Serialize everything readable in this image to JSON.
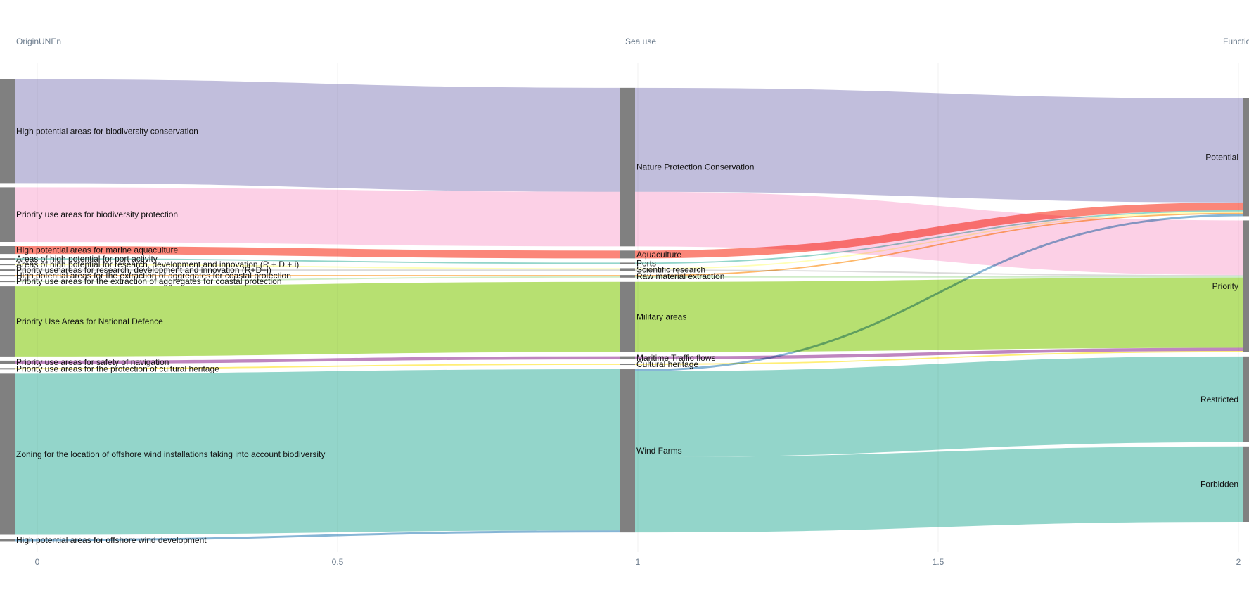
{
  "chart_data": {
    "type": "sankey",
    "columns": [
      "OriginUNEn",
      "Sea use",
      "Function"
    ],
    "x_ticks": [
      "0",
      "0.5",
      "1",
      "1.5",
      "2"
    ],
    "nodes": [
      {
        "id": "hp_bio",
        "label": "High potential areas for biodiversity conservation",
        "column": 0
      },
      {
        "id": "pu_bio",
        "label": "Priority use areas for biodiversity protection",
        "column": 0
      },
      {
        "id": "hp_aqua",
        "label": "High potential areas for marine aquaculture",
        "column": 0
      },
      {
        "id": "hp_port",
        "label": "Areas of high potential for port activity",
        "column": 0
      },
      {
        "id": "hp_rdi",
        "label": "Areas of high potential for research, development and innovation (R + D + i)",
        "column": 0
      },
      {
        "id": "pu_rdi",
        "label": "Priority use areas for research, development and innovation (R+D+i)",
        "column": 0
      },
      {
        "id": "hp_agg",
        "label": "High potential areas for the extraction of aggregates for coastal protection",
        "column": 0
      },
      {
        "id": "pu_agg",
        "label": "Priority use areas for the extraction of aggregates for coastal protection",
        "column": 0
      },
      {
        "id": "pu_def",
        "label": "Priority Use Areas for National Defence",
        "column": 0
      },
      {
        "id": "pu_nav",
        "label": "Priority use areas for safety of navigation",
        "column": 0
      },
      {
        "id": "pu_cult",
        "label": "Priority use areas for the protection of cultural heritage",
        "column": 0
      },
      {
        "id": "z_wind",
        "label": "Zoning for the location of offshore wind installations taking into account biodiversity",
        "column": 0
      },
      {
        "id": "hp_wind",
        "label": "High potential areas for offshore wind development",
        "column": 0
      },
      {
        "id": "npc",
        "label": "Nature Protection Conservation",
        "column": 1
      },
      {
        "id": "aqua",
        "label": "Aquaculture",
        "column": 1
      },
      {
        "id": "ports",
        "label": "Ports",
        "column": 1
      },
      {
        "id": "sci",
        "label": "Scientific research",
        "column": 1
      },
      {
        "id": "raw",
        "label": "Raw material extraction",
        "column": 1
      },
      {
        "id": "mil",
        "label": "Military areas",
        "column": 1
      },
      {
        "id": "mtf",
        "label": "Maritime Traffic flows",
        "column": 1
      },
      {
        "id": "cult",
        "label": "Cultural heritage",
        "column": 1
      },
      {
        "id": "wind",
        "label": "Wind Farms",
        "column": 1
      },
      {
        "id": "pot",
        "label": "Potential",
        "column": 2
      },
      {
        "id": "pri",
        "label": "Priority",
        "column": 2
      },
      {
        "id": "res",
        "label": "Restricted",
        "column": 2
      },
      {
        "id": "forb",
        "label": "Forbidden",
        "column": 2
      }
    ],
    "links": [
      {
        "source": "hp_bio",
        "target": "npc",
        "value": 4.0,
        "color": "#bebada"
      },
      {
        "source": "pu_bio",
        "target": "npc",
        "value": 2.1,
        "color": "#fccde5"
      },
      {
        "source": "hp_aqua",
        "target": "aqua",
        "value": 0.3,
        "color": "#fb8072"
      },
      {
        "source": "hp_port",
        "target": "ports",
        "value": 0.05,
        "color": "#8dd3c7"
      },
      {
        "source": "hp_rdi",
        "target": "sci",
        "value": 0.05,
        "color": "#ffffb3"
      },
      {
        "source": "pu_rdi",
        "target": "sci",
        "value": 0.05,
        "color": "#d9d9d9"
      },
      {
        "source": "hp_agg",
        "target": "raw",
        "value": 0.05,
        "color": "#fdb462"
      },
      {
        "source": "pu_agg",
        "target": "raw",
        "value": 0.05,
        "color": "#ccebc5"
      },
      {
        "source": "pu_def",
        "target": "mil",
        "value": 2.7,
        "color": "#b3de69"
      },
      {
        "source": "pu_nav",
        "target": "mtf",
        "value": 0.12,
        "color": "#bc80bd"
      },
      {
        "source": "pu_cult",
        "target": "cult",
        "value": 0.05,
        "color": "#ffed6f"
      },
      {
        "source": "z_wind",
        "target": "wind",
        "value": 6.2,
        "color": "#8dd3c7"
      },
      {
        "source": "hp_wind",
        "target": "wind",
        "value": 0.08,
        "color": "#80b1d3"
      },
      {
        "source": "npc",
        "target": "pot",
        "value": 4.0,
        "color": "#bebada"
      },
      {
        "source": "npc",
        "target": "pri",
        "value": 2.1,
        "color": "#fccde5"
      },
      {
        "source": "aqua",
        "target": "pot",
        "value": 0.3,
        "color": "#fb8072"
      },
      {
        "source": "ports",
        "target": "pot",
        "value": 0.05,
        "color": "#8dd3c7"
      },
      {
        "source": "sci",
        "target": "pot",
        "value": 0.05,
        "color": "#ffffb3"
      },
      {
        "source": "sci",
        "target": "pri",
        "value": 0.05,
        "color": "#d9d9d9"
      },
      {
        "source": "raw",
        "target": "pot",
        "value": 0.05,
        "color": "#fdb462"
      },
      {
        "source": "raw",
        "target": "pri",
        "value": 0.05,
        "color": "#ccebc5"
      },
      {
        "source": "mil",
        "target": "pri",
        "value": 2.7,
        "color": "#b3de69"
      },
      {
        "source": "mtf",
        "target": "pri",
        "value": 0.12,
        "color": "#bc80bd"
      },
      {
        "source": "cult",
        "target": "pri",
        "value": 0.05,
        "color": "#ffed6f"
      },
      {
        "source": "wind",
        "target": "pot",
        "value": 0.08,
        "color": "#80b1d3"
      },
      {
        "source": "wind",
        "target": "res",
        "value": 3.3,
        "color": "#8dd3c7"
      },
      {
        "source": "wind",
        "target": "forb",
        "value": 2.9,
        "color": "#8dd3c7"
      }
    ]
  }
}
